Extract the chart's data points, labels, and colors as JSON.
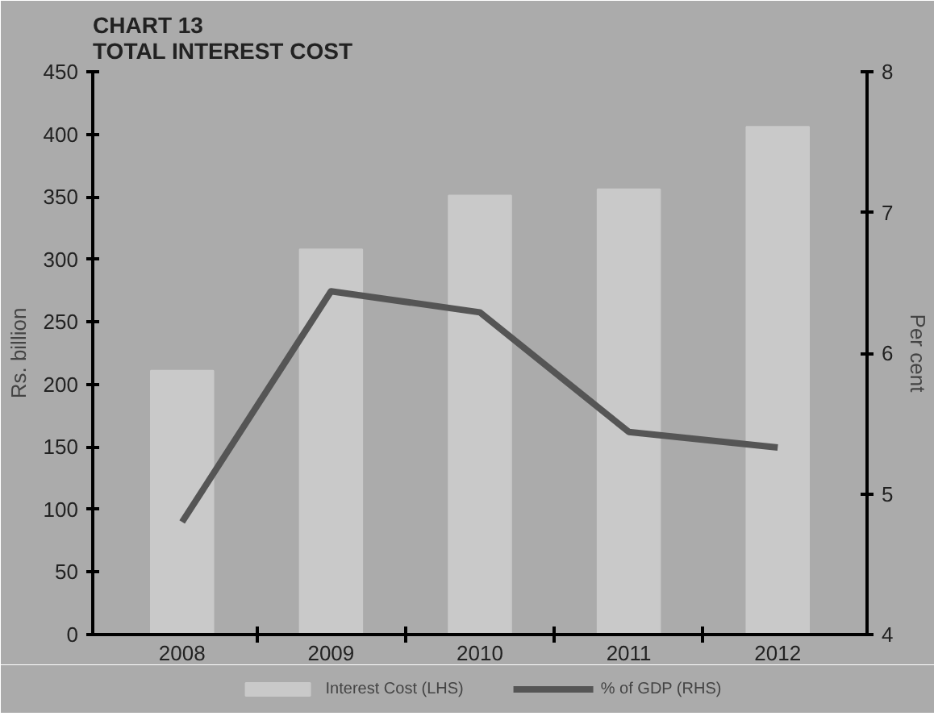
{
  "chart_data": {
    "type": "bar",
    "title": "CHART 13\nTOTAL INTEREST COST",
    "xlabel": null,
    "ylabel": "Rs. billion",
    "y2label": "Per cent",
    "categories": [
      "2008",
      "2009",
      "2010",
      "2011",
      "2012"
    ],
    "series": [
      {
        "name": "Interest Cost (LHS)",
        "color": "#c9c9c9",
        "values": [
          211,
          308,
          351,
          356,
          406
        ]
      },
      {
        "name": "% of GDP (RHS)",
        "color": "#555555",
        "type": "line",
        "axis": "y2",
        "values": [
          4.8,
          6.44,
          6.29,
          5.44,
          5.33
        ]
      }
    ],
    "ylim": [
      0,
      450
    ],
    "yticks": [
      0,
      50,
      100,
      150,
      200,
      250,
      300,
      350,
      400,
      450
    ],
    "y2lim": [
      4,
      8
    ],
    "y2ticks": [
      4,
      5,
      6,
      7,
      8
    ],
    "grid": false,
    "legend": "bottom"
  }
}
